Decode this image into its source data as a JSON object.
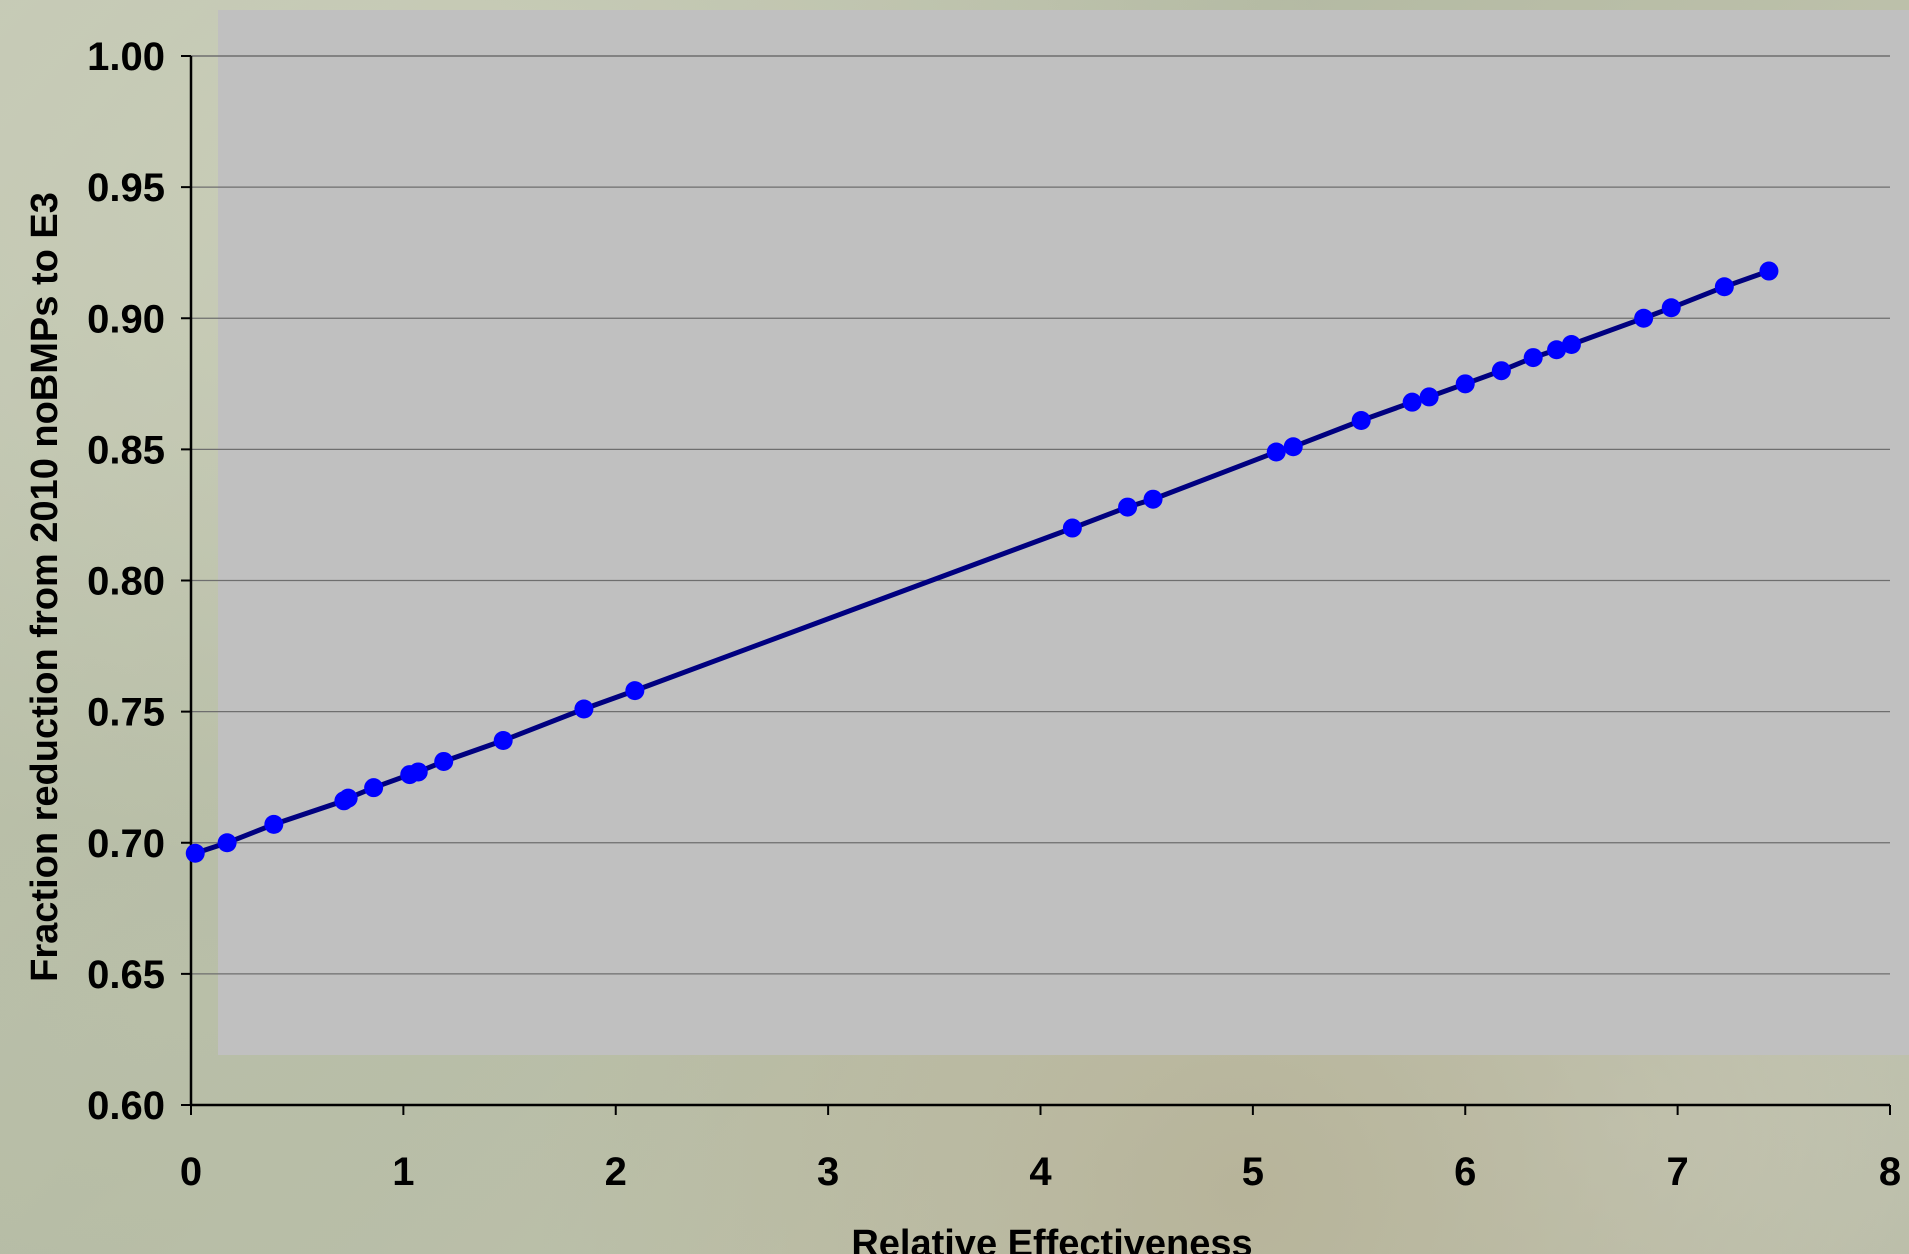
{
  "chart_data": {
    "type": "line",
    "title": "",
    "xlabel": "Relative Effectiveness",
    "ylabel": "Fraction reduction from 2010 noBMPs to E3",
    "xlim": [
      0,
      8
    ],
    "ylim": [
      0.6,
      1.0
    ],
    "x_ticks": [
      "0",
      "1",
      "2",
      "3",
      "4",
      "5",
      "6",
      "7",
      "8"
    ],
    "y_ticks": [
      "1.00",
      "0.95",
      "0.90",
      "0.85",
      "0.80",
      "0.75",
      "0.70",
      "0.65",
      "0.60"
    ],
    "grid": true,
    "legend": "none",
    "series": [
      {
        "marker_color": "#0000ff",
        "line_color": "#000080",
        "points": [
          {
            "x": 0.02,
            "y": 0.696
          },
          {
            "x": 0.17,
            "y": 0.7
          },
          {
            "x": 0.39,
            "y": 0.707
          },
          {
            "x": 0.72,
            "y": 0.716
          },
          {
            "x": 0.74,
            "y": 0.717
          },
          {
            "x": 0.86,
            "y": 0.721
          },
          {
            "x": 1.03,
            "y": 0.726
          },
          {
            "x": 1.07,
            "y": 0.727
          },
          {
            "x": 1.19,
            "y": 0.731
          },
          {
            "x": 1.47,
            "y": 0.739
          },
          {
            "x": 1.85,
            "y": 0.751
          },
          {
            "x": 2.09,
            "y": 0.758
          },
          {
            "x": 4.15,
            "y": 0.82
          },
          {
            "x": 4.41,
            "y": 0.828
          },
          {
            "x": 4.53,
            "y": 0.831
          },
          {
            "x": 5.11,
            "y": 0.849
          },
          {
            "x": 5.19,
            "y": 0.851
          },
          {
            "x": 5.51,
            "y": 0.861
          },
          {
            "x": 5.75,
            "y": 0.868
          },
          {
            "x": 5.83,
            "y": 0.87
          },
          {
            "x": 6.0,
            "y": 0.875
          },
          {
            "x": 6.17,
            "y": 0.88
          },
          {
            "x": 6.32,
            "y": 0.885
          },
          {
            "x": 6.43,
            "y": 0.888
          },
          {
            "x": 6.5,
            "y": 0.89
          },
          {
            "x": 6.84,
            "y": 0.9
          },
          {
            "x": 6.97,
            "y": 0.904
          },
          {
            "x": 7.22,
            "y": 0.912
          },
          {
            "x": 7.43,
            "y": 0.918
          }
        ]
      }
    ]
  }
}
